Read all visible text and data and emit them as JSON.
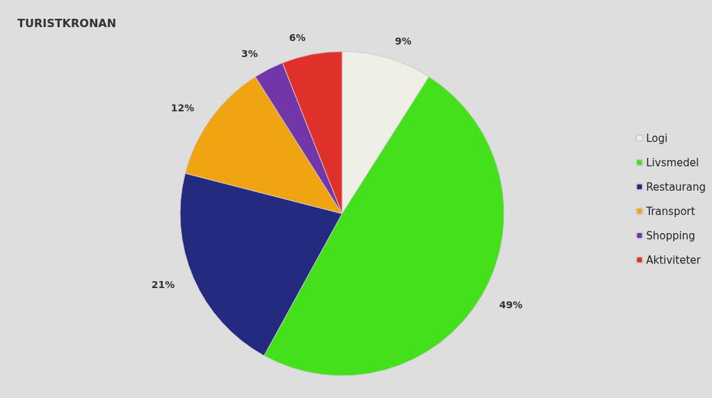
{
  "chart_data": {
    "type": "pie",
    "title": "TURISTKRONAN",
    "categories": [
      "Logi",
      "Livsmedel",
      "Restaurang",
      "Transport",
      "Shopping",
      "Aktiviteter"
    ],
    "values": [
      9,
      49,
      21,
      12,
      3,
      6
    ],
    "value_labels": [
      "9%",
      "49%",
      "21%",
      "12%",
      "3%",
      "6%"
    ],
    "colors": [
      "#efefe8",
      "#44e01c",
      "#232a80",
      "#f0a412",
      "#7236a8",
      "#e0302a"
    ],
    "legend": "right"
  }
}
